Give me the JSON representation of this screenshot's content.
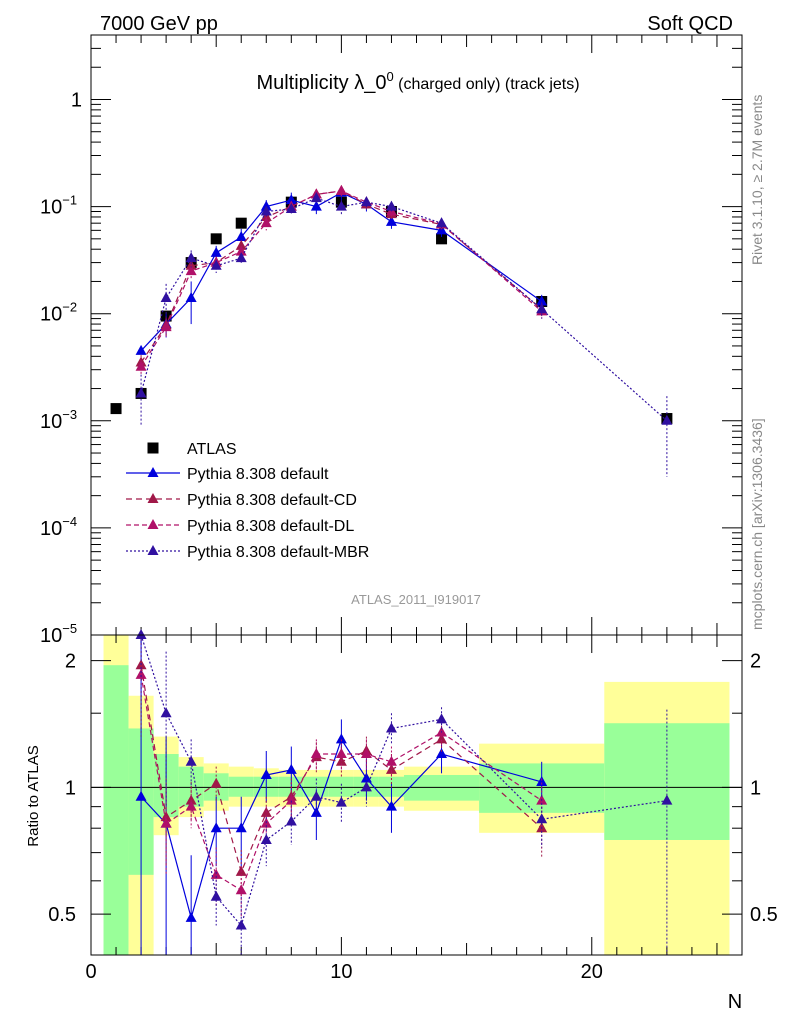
{
  "header": {
    "left": "7000 GeV pp",
    "right": "Soft QCD"
  },
  "side_text": {
    "rivet": "Rivet 3.1.10, ≥ 2.7M events",
    "mcplots": "mcplots.cern.ch [arXiv:1306.3436]"
  },
  "watermark": "ATLAS_2011_I919017",
  "colors": {
    "data": "#000000",
    "default": "#0000dd",
    "cd": "#a01848",
    "dl": "#b01068",
    "mbr": "#3010a0",
    "band_inner": "#99ff99",
    "band_outer": "#ffff99"
  },
  "chart_data": [
    {
      "type": "scatter",
      "title_main": "Multiplicity λ_0",
      "title_sup": "0",
      "title_rest": " (charged only) (track jets)",
      "xlabel": "N",
      "ylabel": "",
      "xlim": [
        0,
        26
      ],
      "ylim": [
        1e-05,
        4
      ],
      "yscale": "log",
      "y_ticks": [
        {
          "v": 1,
          "label": "1",
          "exp": ""
        },
        {
          "v": 0.1,
          "label": "10",
          "exp": "−1"
        },
        {
          "v": 0.01,
          "label": "10",
          "exp": "−2"
        },
        {
          "v": 0.001,
          "label": "10",
          "exp": "−3"
        },
        {
          "v": 0.0001,
          "label": "10",
          "exp": "−4"
        },
        {
          "v": 1e-05,
          "label": "10",
          "exp": "−5"
        }
      ],
      "legend_position": "bottom-left",
      "series": [
        {
          "name": "ATLAS",
          "style": "data",
          "x": [
            1,
            2,
            3,
            4,
            5,
            6,
            8,
            10,
            12,
            14,
            18,
            23
          ],
          "y": [
            0.0013,
            0.0018,
            0.0095,
            0.03,
            0.05,
            0.07,
            0.11,
            0.11,
            0.09,
            0.05,
            0.013,
            0.00105
          ]
        },
        {
          "name": "Pythia 8.308 default",
          "style": "default",
          "x": [
            2,
            3,
            4,
            5,
            6,
            7,
            8,
            9,
            10,
            11,
            12,
            14,
            18
          ],
          "y": [
            0.0045,
            0.008,
            0.014,
            0.037,
            0.052,
            0.1,
            0.115,
            0.1,
            0.135,
            0.105,
            0.072,
            0.06,
            0.013
          ],
          "err": [
            0.0003,
            0.002,
            0.006,
            0.006,
            0.01,
            0.015,
            0.02,
            0.015,
            0.02,
            0.015,
            0.01,
            0.008,
            0.002
          ]
        },
        {
          "name": "Pythia 8.308 default-CD",
          "style": "cd",
          "x": [
            2,
            3,
            4,
            5,
            6,
            7,
            8,
            9,
            10,
            11,
            12,
            14,
            18
          ],
          "y": [
            0.0035,
            0.0078,
            0.028,
            0.03,
            0.043,
            0.08,
            0.1,
            0.13,
            0.14,
            0.105,
            0.085,
            0.068,
            0.011
          ],
          "err": [
            0.0006,
            0.0015,
            0.004,
            0.004,
            0.005,
            0.01,
            0.012,
            0.015,
            0.015,
            0.012,
            0.01,
            0.008,
            0.0015
          ]
        },
        {
          "name": "Pythia 8.308 default-DL",
          "style": "dl",
          "x": [
            2,
            3,
            4,
            5,
            6,
            7,
            8,
            9,
            10,
            11,
            12,
            14,
            18
          ],
          "y": [
            0.0032,
            0.0075,
            0.025,
            0.03,
            0.038,
            0.07,
            0.1,
            0.13,
            0.14,
            0.11,
            0.09,
            0.069,
            0.0105
          ],
          "err": [
            0.0005,
            0.0015,
            0.004,
            0.004,
            0.005,
            0.01,
            0.012,
            0.015,
            0.015,
            0.012,
            0.01,
            0.008,
            0.0015
          ]
        },
        {
          "name": "Pythia 8.308 default-MBR",
          "style": "mbr",
          "x": [
            2,
            3,
            4,
            5,
            6,
            7,
            8,
            9,
            10,
            11,
            12,
            14,
            18,
            23
          ],
          "y": [
            0.0018,
            0.014,
            0.033,
            0.028,
            0.033,
            0.09,
            0.095,
            0.12,
            0.1,
            0.11,
            0.1,
            0.07,
            0.011,
            0.001
          ],
          "err": [
            0.0009,
            0.005,
            0.006,
            0.004,
            0.004,
            0.01,
            0.012,
            0.015,
            0.015,
            0.012,
            0.012,
            0.008,
            0.002,
            0.0007
          ]
        }
      ]
    },
    {
      "type": "scatter",
      "title": "",
      "xlabel": "N",
      "ylabel": "Ratio to ATLAS",
      "xlim": [
        0,
        26
      ],
      "ylim": [
        0.4,
        2.3
      ],
      "yscale": "log",
      "x_ticks": [
        0,
        10,
        20
      ],
      "y_ticks": [
        0.5,
        1,
        2
      ],
      "reference_line": 1,
      "uncertainty_bands": [
        {
          "x0": 0.5,
          "x1": 1.5,
          "inner": [
            0.3,
            1.95
          ],
          "outer": [
            0.3,
            2.4
          ]
        },
        {
          "x0": 1.5,
          "x1": 2.5,
          "inner": [
            0.62,
            1.38
          ],
          "outer": [
            0.3,
            1.65
          ]
        },
        {
          "x0": 2.5,
          "x1": 3.5,
          "inner": [
            0.85,
            1.2
          ],
          "outer": [
            0.77,
            1.32
          ]
        },
        {
          "x0": 3.5,
          "x1": 4.5,
          "inner": [
            0.9,
            1.12
          ],
          "outer": [
            0.85,
            1.18
          ]
        },
        {
          "x0": 4.5,
          "x1": 5.5,
          "inner": [
            0.93,
            1.08
          ],
          "outer": [
            0.88,
            1.14
          ]
        },
        {
          "x0": 5.5,
          "x1": 6.5,
          "inner": [
            0.95,
            1.06
          ],
          "outer": [
            0.9,
            1.12
          ]
        },
        {
          "x0": 6.5,
          "x1": 7.5,
          "inner": [
            0.95,
            1.06
          ],
          "outer": [
            0.9,
            1.11
          ]
        },
        {
          "x0": 7.5,
          "x1": 8.5,
          "inner": [
            0.95,
            1.06
          ],
          "outer": [
            0.9,
            1.1
          ]
        },
        {
          "x0": 8.5,
          "x1": 9.5,
          "inner": [
            0.95,
            1.06
          ],
          "outer": [
            0.9,
            1.1
          ]
        },
        {
          "x0": 9.5,
          "x1": 10.5,
          "inner": [
            0.95,
            1.06
          ],
          "outer": [
            0.9,
            1.1
          ]
        },
        {
          "x0": 10.5,
          "x1": 11.5,
          "inner": [
            0.95,
            1.06
          ],
          "outer": [
            0.9,
            1.1
          ]
        },
        {
          "x0": 11.5,
          "x1": 12.5,
          "inner": [
            0.95,
            1.06
          ],
          "outer": [
            0.9,
            1.1
          ]
        },
        {
          "x0": 12.5,
          "x1": 15.5,
          "inner": [
            0.93,
            1.07
          ],
          "outer": [
            0.88,
            1.12
          ]
        },
        {
          "x0": 15.5,
          "x1": 20.5,
          "inner": [
            0.87,
            1.14
          ],
          "outer": [
            0.78,
            1.27
          ]
        },
        {
          "x0": 20.5,
          "x1": 25.5,
          "inner": [
            0.75,
            1.42
          ],
          "outer": [
            0.37,
            1.78
          ]
        }
      ],
      "series": [
        {
          "name": "Pythia 8.308 default",
          "style": "default",
          "x": [
            2,
            3,
            4,
            5,
            6,
            7,
            8,
            9,
            10,
            11,
            12,
            14,
            18
          ],
          "y": [
            0.95,
            0.82,
            0.49,
            0.8,
            0.8,
            1.07,
            1.1,
            0.87,
            1.3,
            1.05,
            0.9,
            1.2,
            1.03
          ],
          "err": [
            1.4,
            0.5,
            0.2,
            0.15,
            0.15,
            0.15,
            0.15,
            0.12,
            0.15,
            0.12,
            0.12,
            0.12,
            0.12
          ]
        },
        {
          "name": "Pythia 8.308 default-CD",
          "style": "cd",
          "x": [
            2,
            3,
            4,
            5,
            6,
            7,
            8,
            9,
            10,
            11,
            12,
            14,
            18
          ],
          "y": [
            1.95,
            0.85,
            0.93,
            1.02,
            0.63,
            0.87,
            0.95,
            1.18,
            1.15,
            1.22,
            1.1,
            1.3,
            0.8
          ],
          "err": [
            0.5,
            0.2,
            0.1,
            0.1,
            0.08,
            0.08,
            0.1,
            0.1,
            0.1,
            0.1,
            0.1,
            0.1,
            0.12
          ]
        },
        {
          "name": "Pythia 8.308 default-DL",
          "style": "dl",
          "x": [
            2,
            3,
            4,
            5,
            6,
            7,
            8,
            9,
            10,
            11,
            12,
            14,
            18
          ],
          "y": [
            1.85,
            0.82,
            0.9,
            0.62,
            0.57,
            0.82,
            0.93,
            1.2,
            1.2,
            1.2,
            1.15,
            1.35,
            0.93
          ],
          "err": [
            0.5,
            0.2,
            0.1,
            0.1,
            0.08,
            0.08,
            0.1,
            0.1,
            0.1,
            0.1,
            0.1,
            0.1,
            0.12
          ]
        },
        {
          "name": "Pythia 8.308 default-MBR",
          "style": "mbr",
          "x": [
            2,
            3,
            4,
            5,
            6,
            7,
            8,
            9,
            10,
            11,
            12,
            14,
            18,
            23
          ],
          "y": [
            2.3,
            1.5,
            1.15,
            0.55,
            0.47,
            0.75,
            0.83,
            0.95,
            0.92,
            1.0,
            1.38,
            1.45,
            0.84,
            0.93
          ],
          "err": [
            1.0,
            0.6,
            0.15,
            0.08,
            0.08,
            0.1,
            0.1,
            0.1,
            0.1,
            0.1,
            0.12,
            0.1,
            0.12,
            0.6
          ]
        }
      ]
    }
  ]
}
